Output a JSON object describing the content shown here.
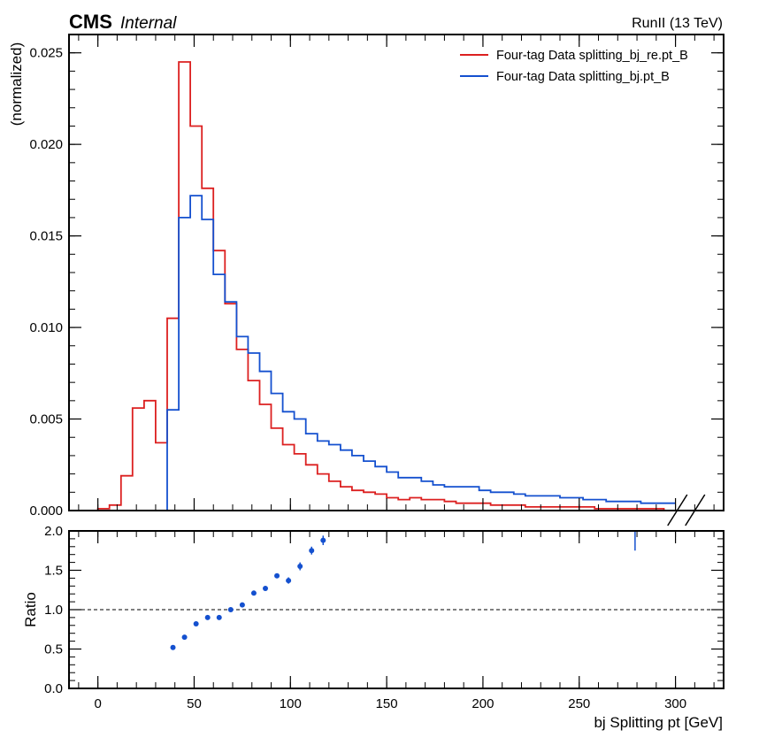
{
  "header": {
    "experiment": "CMS",
    "status": "Internal",
    "energy": "RunII (13 TeV)"
  },
  "colors": {
    "series_red": "#dc2020",
    "series_blue": "#1450cf",
    "ratio_points": "#1450cf"
  },
  "chart_data": [
    {
      "type": "step",
      "role": "main",
      "ylabel": "(normalized)",
      "xlim": [
        -15,
        325
      ],
      "ylim": [
        0,
        0.026
      ],
      "yticks": [
        0.0,
        0.005,
        0.01,
        0.015,
        0.02,
        0.025
      ],
      "ytick_labels": [
        "0.000",
        "0.005",
        "0.010",
        "0.015",
        "0.020",
        "0.025"
      ],
      "legend_position": "top-right",
      "break_marks": "axis break drawn at right end of x axis",
      "bin_edges": [
        0,
        6,
        12,
        18,
        24,
        30,
        36,
        42,
        48,
        54,
        60,
        66,
        72,
        78,
        84,
        90,
        96,
        102,
        108,
        114,
        120,
        126,
        132,
        138,
        144,
        150,
        156,
        162,
        168,
        174,
        180,
        186,
        192,
        198,
        204,
        210,
        216,
        222,
        228,
        234,
        240,
        246,
        252,
        258,
        264,
        270,
        276,
        282,
        288,
        294,
        300
      ],
      "series": [
        {
          "name": "Four-tag Data splitting_bj_re.pt_B",
          "color": "#dc2020",
          "values": [
            0.0001,
            0.0003,
            0.0019,
            0.0056,
            0.006,
            0.0037,
            0.0105,
            0.0245,
            0.021,
            0.0176,
            0.0142,
            0.0113,
            0.0088,
            0.0071,
            0.0058,
            0.0045,
            0.0036,
            0.0031,
            0.0025,
            0.002,
            0.0016,
            0.0013,
            0.0011,
            0.001,
            0.0009,
            0.0007,
            0.0006,
            0.0007,
            0.0006,
            0.0006,
            0.0005,
            0.0004,
            0.0004,
            0.0004,
            0.0003,
            0.0003,
            0.0003,
            0.0002,
            0.0002,
            0.0002,
            0.0002,
            0.0002,
            0.0002,
            0.0001,
            0.0001,
            0.0001,
            0.0001,
            0.0001,
            0.0001,
            0.0
          ]
        },
        {
          "name": "Four-tag Data splitting_bj.pt_B",
          "color": "#1450cf",
          "values": [
            0.0,
            0.0,
            0.0,
            0.0,
            0.0,
            0.0,
            0.0055,
            0.016,
            0.0172,
            0.0159,
            0.0129,
            0.0114,
            0.0095,
            0.0086,
            0.0076,
            0.0064,
            0.0054,
            0.005,
            0.0042,
            0.0038,
            0.0036,
            0.0033,
            0.003,
            0.0027,
            0.0024,
            0.0021,
            0.0018,
            0.0018,
            0.0016,
            0.0014,
            0.0013,
            0.0013,
            0.0013,
            0.0011,
            0.001,
            0.001,
            0.0009,
            0.0008,
            0.0008,
            0.0008,
            0.0007,
            0.0007,
            0.0006,
            0.0006,
            0.0005,
            0.0005,
            0.0005,
            0.0004,
            0.0004,
            0.0004
          ]
        }
      ]
    },
    {
      "type": "scatter",
      "role": "ratio",
      "ylabel": "Ratio",
      "xlabel": "bj Splitting pt [GeV]",
      "xlim": [
        -15,
        325
      ],
      "ylim": [
        0.0,
        2.0
      ],
      "xticks": [
        0,
        50,
        100,
        150,
        200,
        250,
        300
      ],
      "xtick_labels": [
        "0",
        "50",
        "100",
        "150",
        "200",
        "250",
        "300"
      ],
      "yticks": [
        0.0,
        0.5,
        1.0,
        1.5,
        2.0
      ],
      "ytick_labels": [
        "0.0",
        "0.5",
        "1.0",
        "1.5",
        "2.0"
      ],
      "reference_line": 1.0,
      "points": [
        {
          "x": 39,
          "y": 0.52,
          "err": 0.02
        },
        {
          "x": 45,
          "y": 0.65,
          "err": 0.02
        },
        {
          "x": 51,
          "y": 0.82,
          "err": 0.02
        },
        {
          "x": 57,
          "y": 0.9,
          "err": 0.02
        },
        {
          "x": 63,
          "y": 0.9,
          "err": 0.02
        },
        {
          "x": 69,
          "y": 1.0,
          "err": 0.02
        },
        {
          "x": 75,
          "y": 1.06,
          "err": 0.02
        },
        {
          "x": 81,
          "y": 1.21,
          "err": 0.03
        },
        {
          "x": 87,
          "y": 1.27,
          "err": 0.03
        },
        {
          "x": 93,
          "y": 1.43,
          "err": 0.03
        },
        {
          "x": 99,
          "y": 1.37,
          "err": 0.04
        },
        {
          "x": 105,
          "y": 1.55,
          "err": 0.05
        },
        {
          "x": 111,
          "y": 1.75,
          "err": 0.05
        },
        {
          "x": 117,
          "y": 1.88,
          "err": 0.06
        }
      ],
      "extra_segment": {
        "x": 279,
        "y_from": 1.75,
        "y_to": 2.0
      }
    }
  ]
}
